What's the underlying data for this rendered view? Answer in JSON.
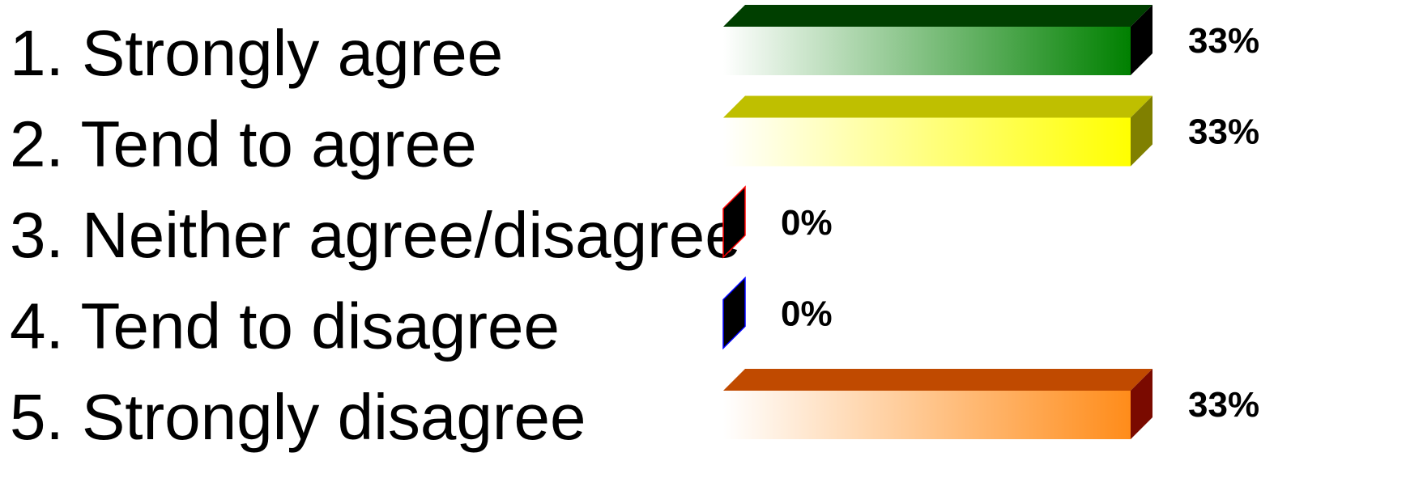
{
  "chart_data": {
    "type": "bar",
    "orientation": "horizontal",
    "categories": [
      "1. Strongly agree",
      "2. Tend to agree",
      "3. Neither agree/disagree",
      "4. Tend to disagree",
      "5. Strongly disagree"
    ],
    "values": [
      33,
      33,
      0,
      0,
      33
    ],
    "value_labels": [
      "33%",
      "33%",
      "0%",
      "0%",
      "33%"
    ],
    "unit": "%",
    "xlim": [
      0,
      33
    ],
    "grid": false,
    "legend": "none",
    "bar_colors": [
      "#008000",
      "#FFFF00",
      "#FF0000",
      "#0000FF",
      "#FF8C1A"
    ],
    "bar_top_colors": [
      "#003F00",
      "#BFBF00",
      "#8B1A1A",
      "#1A1A8B",
      "#C04A00"
    ],
    "bar_side_colors": [
      "#000000",
      "#808000",
      "#000000",
      "#000000",
      "#7A0A00"
    ]
  }
}
